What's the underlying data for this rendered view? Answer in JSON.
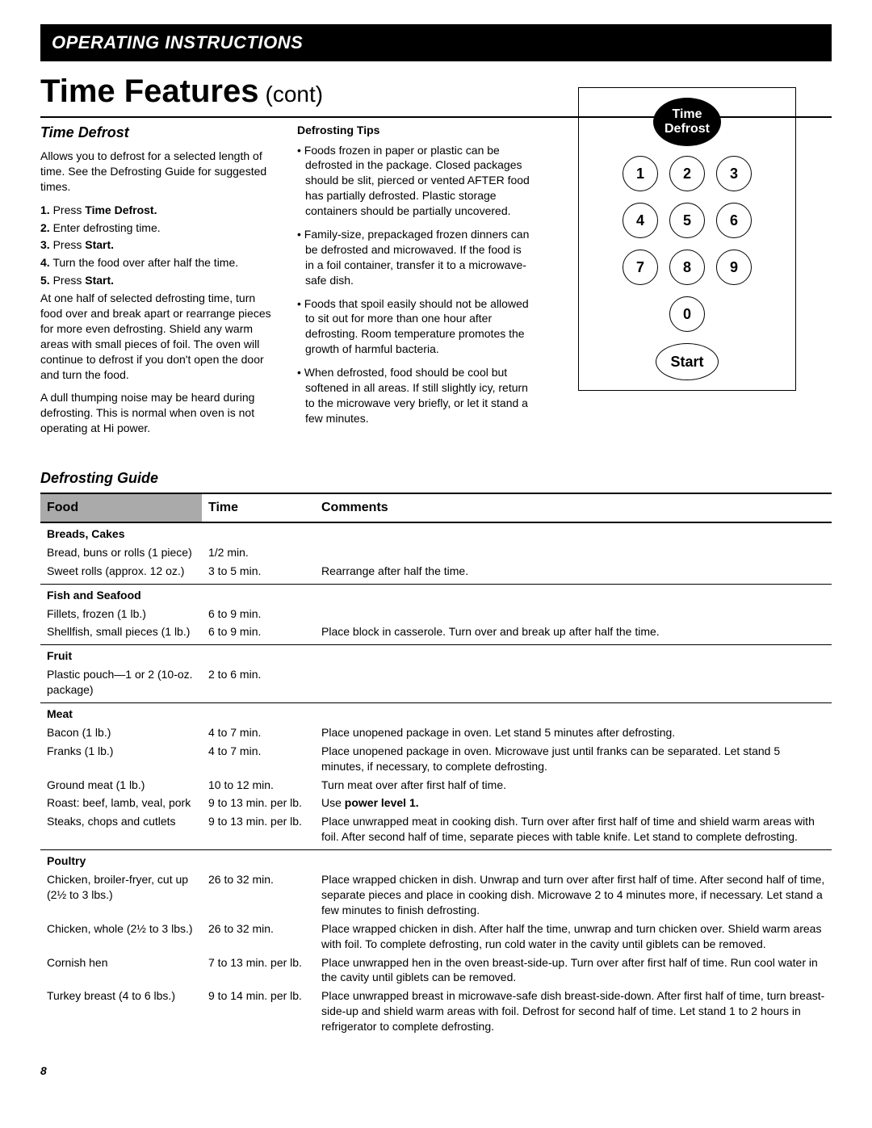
{
  "banner": "OPERATING INSTRUCTIONS",
  "title": "Time Features",
  "title_cont": "(cont)",
  "section_head": "Time Defrost",
  "intro": "Allows you to defrost for a selected length of time. See the Defrosting Guide for suggested times.",
  "steps": [
    {
      "n": "1.",
      "pre": "Press ",
      "bold": "Time Defrost.",
      "post": ""
    },
    {
      "n": "2.",
      "pre": "Enter defrosting time.",
      "bold": "",
      "post": ""
    },
    {
      "n": "3.",
      "pre": "Press ",
      "bold": "Start.",
      "post": ""
    },
    {
      "n": "4.",
      "pre": "Turn the food over after half the time.",
      "bold": "",
      "post": ""
    },
    {
      "n": "5.",
      "pre": "Press ",
      "bold": "Start.",
      "post": ""
    }
  ],
  "para1": "At one half of selected defrosting time, turn food over and break apart or rearrange pieces for more even defrosting. Shield any warm areas with small pieces of foil. The oven will continue to defrost if you don't open the door and turn the food.",
  "para2": "A dull thumping noise may be heard during defrosting. This is normal when oven is not operating at Hi power.",
  "tips_head": "Defrosting Tips",
  "tips": [
    "Foods frozen in paper or plastic can be defrosted in the package. Closed packages should be slit, pierced or vented AFTER food has partially defrosted. Plastic storage containers should be partially uncovered.",
    "Family-size, prepackaged frozen dinners can be defrosted and microwaved. If the food is in a foil container, transfer it to a microwave-safe dish.",
    "Foods that spoil easily should not be allowed to sit out for more than one hour after defrosting. Room temperature promotes the growth of harmful bacteria.",
    "When defrosted, food should be cool but softened in all areas. If still slightly icy, return to the microwave very briefly, or let it stand a few minutes."
  ],
  "keypad": {
    "label1": "Time",
    "label2": "Defrost",
    "keys": [
      "1",
      "2",
      "3",
      "4",
      "5",
      "6",
      "7",
      "8",
      "9",
      "0"
    ],
    "start": "Start"
  },
  "guide_head": "Defrosting Guide",
  "table": {
    "headers": [
      "Food",
      "Time",
      "Comments"
    ],
    "sections": [
      {
        "title": "Breads, Cakes",
        "rows": [
          {
            "f": "Bread, buns or rolls (1 piece)",
            "t": "1/2 min.",
            "c": ""
          },
          {
            "f": "Sweet rolls (approx. 12 oz.)",
            "t": "3 to 5 min.",
            "c": "Rearrange after half the time."
          }
        ]
      },
      {
        "title": "Fish and Seafood",
        "rows": [
          {
            "f": "Fillets, frozen (1 lb.)",
            "t": "6 to 9 min.",
            "c": ""
          },
          {
            "f": "Shellfish, small pieces (1 lb.)",
            "t": "6 to 9 min.",
            "c": "Place block in casserole. Turn over and break up after half the time."
          }
        ]
      },
      {
        "title": "Fruit",
        "rows": [
          {
            "f": "Plastic pouch—1 or 2 (10-oz. package)",
            "t": "2 to 6 min.",
            "c": ""
          }
        ]
      },
      {
        "title": "Meat",
        "rows": [
          {
            "f": "Bacon (1 lb.)",
            "t": "4 to 7 min.",
            "c": "Place unopened package in oven. Let stand 5 minutes after defrosting."
          },
          {
            "f": "Franks (1 lb.)",
            "t": "4 to 7 min.",
            "c": "Place unopened package in oven. Microwave just until franks can be separated. Let stand 5 minutes, if necessary, to complete defrosting."
          },
          {
            "f": "Ground meat (1 lb.)",
            "t": "10 to 12 min.",
            "c": "Turn meat over after first half of time."
          },
          {
            "f": "Roast: beef, lamb, veal, pork",
            "t": "9 to 13 min. per lb.",
            "c_pre": "Use ",
            "c_bold": "power level 1.",
            "c_post": ""
          },
          {
            "f": "Steaks, chops and cutlets",
            "t": "9 to 13 min. per lb.",
            "c": "Place unwrapped meat in cooking dish. Turn over after first half of time and shield warm areas with foil. After second half of time, separate pieces with table knife. Let stand to complete defrosting."
          }
        ]
      },
      {
        "title": "Poultry",
        "rows": [
          {
            "f": "Chicken, broiler-fryer, cut up (2½ to 3 lbs.)",
            "t": "26 to 32 min.",
            "c": "Place wrapped chicken in dish. Unwrap and turn over after first half of time. After second half of time, separate pieces and place in cooking dish. Microwave 2 to 4 minutes more, if necessary. Let stand a few minutes to finish defrosting."
          },
          {
            "f": "Chicken, whole (2½ to 3 lbs.)",
            "t": "26 to 32 min.",
            "c": "Place wrapped chicken in dish. After half the time, unwrap and turn chicken over. Shield warm areas with foil. To complete defrosting, run cold water in the cavity until giblets can be removed."
          },
          {
            "f": "Cornish hen",
            "t": "7 to 13 min. per lb.",
            "c": "Place unwrapped hen in the oven breast-side-up. Turn over after first half of time. Run cool water in the cavity until giblets can be removed."
          },
          {
            "f": "Turkey breast (4 to 6 lbs.)",
            "t": "9 to 14 min. per lb.",
            "c": "Place unwrapped breast in microwave-safe dish breast-side-down. After first half of time, turn breast-side-up and shield warm areas with foil. Defrost for second half of time. Let stand 1 to 2 hours in refrigerator to complete defrosting."
          }
        ]
      }
    ]
  },
  "page_num": "8"
}
